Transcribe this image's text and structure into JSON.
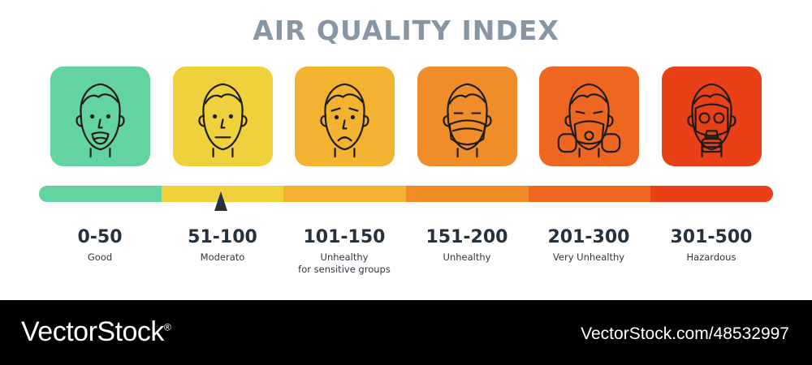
{
  "title": "AIR QUALITY INDEX",
  "marker_value": 75,
  "categories": [
    {
      "range": "0-50",
      "label": [
        "Good"
      ],
      "color": "#63d3a0",
      "icon": "happy-face-icon"
    },
    {
      "range": "51-100",
      "label": [
        "Moderato"
      ],
      "color": "#efd03d",
      "icon": "neutral-face-icon"
    },
    {
      "range": "101-150",
      "label": [
        "Unhealthy",
        "for sensitive groups"
      ],
      "color": "#f3b22f",
      "icon": "sad-face-icon"
    },
    {
      "range": "151-200",
      "label": [
        "Unhealthy"
      ],
      "color": "#f18d28",
      "icon": "face-mask-icon"
    },
    {
      "range": "201-300",
      "label": [
        "Very Unhealthy"
      ],
      "color": "#ef6620",
      "icon": "respirator-icon"
    },
    {
      "range": "301-500",
      "label": [
        "Hazardous"
      ],
      "color": "#ea4018",
      "icon": "gas-mask-icon"
    }
  ],
  "footer": {
    "brand": "VectorStock",
    "brand_mark": "®",
    "stock_id": "VectorStock.com/48532997"
  }
}
